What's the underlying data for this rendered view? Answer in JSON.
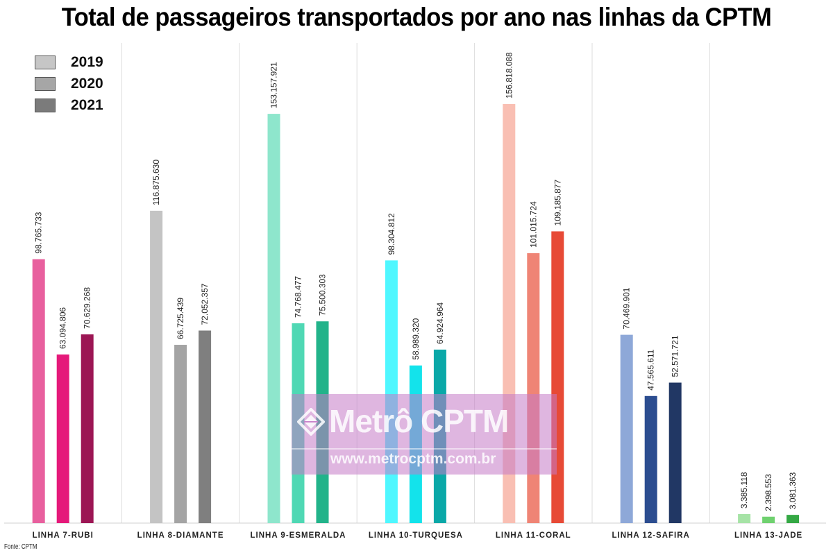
{
  "title": "Total de passageiros transportados por ano nas linhas da CPTM",
  "source": "Fonte: CPTM",
  "watermark": {
    "brand": "Metrô CPTM",
    "url": "www.metrocptm.com.br"
  },
  "legend": [
    {
      "label": "2019",
      "color": "#c6c6c6"
    },
    {
      "label": "2020",
      "color": "#a6a6a6"
    },
    {
      "label": "2021",
      "color": "#7b7b7b"
    }
  ],
  "chart_data": {
    "type": "bar",
    "title": "Total de passageiros transportados por ano nas linhas da CPTM",
    "xlabel": "",
    "ylabel": "",
    "ylim": [
      0,
      160000000
    ],
    "grid": "vertical separators between groups",
    "legend_position": "top-left",
    "categories": [
      "LINHA 7-RUBI",
      "LINHA 8-DIAMANTE",
      "LINHA 9-ESMERALDA",
      "LINHA 10-TURQUESA",
      "LINHA 11-CORAL",
      "LINHA 12-SAFIRA",
      "LINHA 13-JADE"
    ],
    "series": [
      {
        "name": "2019",
        "values": [
          98765733,
          116875630,
          153157921,
          98304812,
          156818088,
          70469901,
          3385118
        ]
      },
      {
        "name": "2020",
        "values": [
          63094806,
          66725439,
          74768477,
          58989320,
          101015724,
          47565611,
          2398553
        ]
      },
      {
        "name": "2021",
        "values": [
          70629268,
          72052357,
          75500303,
          64924964,
          109185877,
          52571721,
          3081363
        ]
      }
    ],
    "data_labels": [
      [
        "98.765.733",
        "63.094.806",
        "70.629.268"
      ],
      [
        "116.875.630",
        "66.725.439",
        "72.052.357"
      ],
      [
        "153.157.921",
        "74.768.477",
        "75.500.303"
      ],
      [
        "98.304.812",
        "58.989.320",
        "64.924.964"
      ],
      [
        "156.818.088",
        "101.015.724",
        "109.185.877"
      ],
      [
        "70.469.901",
        "47.565.611",
        "52.571.721"
      ],
      [
        "3.385.118",
        "2.398.553",
        "3.081.363"
      ]
    ],
    "bar_colors": [
      [
        "#e8609e",
        "#e5197a",
        "#9c1654"
      ],
      [
        "#c4c4c4",
        "#a4a4a4",
        "#7f7f7f"
      ],
      [
        "#8ee6cc",
        "#4fd8b4",
        "#22b38a"
      ],
      [
        "#4ff7ff",
        "#13e3eb",
        "#0aa8a8"
      ],
      [
        "#f9bfb3",
        "#ef8475",
        "#e74a36"
      ],
      [
        "#8ea8d8",
        "#2c4d90",
        "#213764"
      ],
      [
        "#a6e3a6",
        "#6fd16f",
        "#34a844"
      ]
    ]
  }
}
